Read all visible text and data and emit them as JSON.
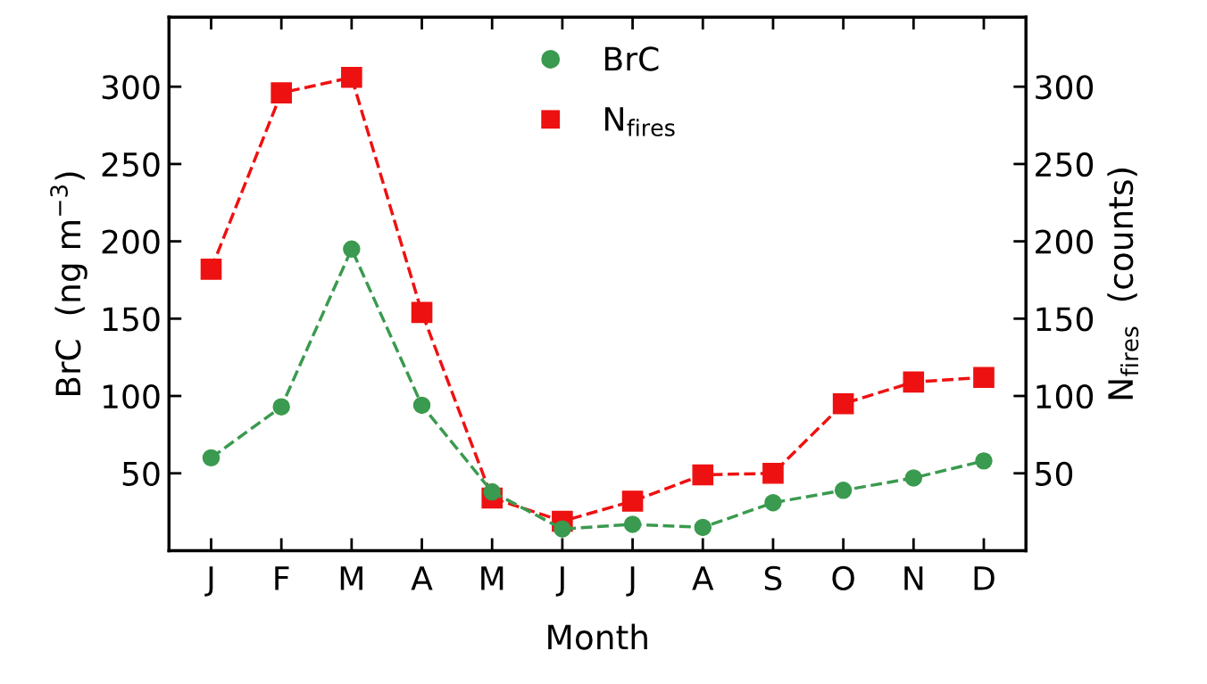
{
  "chart_data": {
    "type": "line",
    "xlabel": "Month",
    "ylabel": "BrC  (ng m$^{−3}$)",
    "y2label": "N$_{fires}$  (counts)",
    "categories": [
      "J",
      "F",
      "M",
      "A",
      "M",
      "J",
      "J",
      "A",
      "S",
      "O",
      "N",
      "D"
    ],
    "series": [
      {
        "name": "BrC",
        "color": "#3a9a4f",
        "marker": "circle",
        "values": [
          60,
          93,
          195,
          94,
          38,
          14,
          17,
          15,
          31,
          39,
          47,
          58
        ]
      },
      {
        "name": "N$_{fires}$",
        "color": "#ee1111",
        "marker": "square",
        "axis": "y2",
        "values": [
          182,
          296,
          306,
          154,
          34,
          19,
          32,
          49,
          50,
          95,
          109,
          112
        ]
      }
    ],
    "ylim": [
      0,
      345
    ],
    "yticks": [
      50,
      100,
      150,
      200,
      250,
      300
    ],
    "y2lim": [
      0,
      345
    ],
    "y2ticks": [
      50,
      100,
      150,
      200,
      250,
      300
    ],
    "line_style": "dashed",
    "grid": false,
    "legend": "top center"
  }
}
